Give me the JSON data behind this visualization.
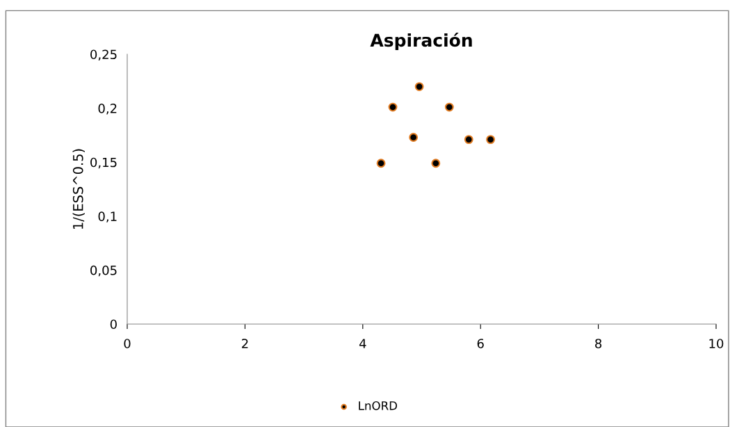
{
  "chart_data": {
    "type": "scatter",
    "title": "Aspiración",
    "ylabel": "1/(ESS^0.5)",
    "series": [
      {
        "name": "LnORD",
        "color": "#000000",
        "x": [
          4.31,
          4.51,
          4.86,
          4.96,
          5.24,
          5.47,
          5.8,
          6.17
        ],
        "values": [
          0.149,
          0.201,
          0.173,
          0.22,
          0.149,
          0.201,
          0.171,
          0.171
        ]
      }
    ],
    "xlim": [
      0,
      10
    ],
    "xticks": [
      0,
      2,
      4,
      6,
      8,
      10
    ],
    "ylim": [
      0,
      0.25
    ],
    "yticks": [
      {
        "value": 0,
        "label": "0"
      },
      {
        "value": 0.05,
        "label": "0,05"
      },
      {
        "value": 0.1,
        "label": "0,1"
      },
      {
        "value": 0.15,
        "label": "0,15"
      },
      {
        "value": 0.2,
        "label": "0,2"
      },
      {
        "value": 0.25,
        "label": "0,25"
      }
    ],
    "grid": false,
    "legend": "bottom",
    "marker": "circle"
  }
}
